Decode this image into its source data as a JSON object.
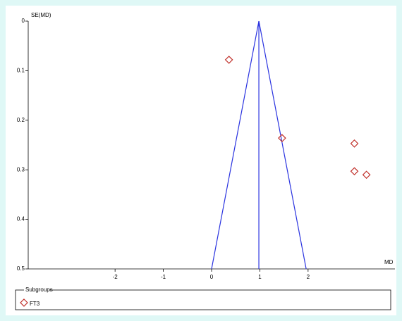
{
  "chart_data": {
    "type": "funnel",
    "xlabel": "MD",
    "ylabel": "SE(MD)",
    "xlim": [
      -3.8,
      3.8
    ],
    "xticks": [
      -2,
      -1,
      0,
      1,
      2
    ],
    "ylim": [
      0,
      0.5
    ],
    "yticks": [
      0,
      0.1,
      0.2,
      0.3,
      0.4,
      0.5
    ],
    "y_inverted": true,
    "funnel_color": "#2a33e0",
    "funnel": {
      "apex": [
        0.98,
        0
      ],
      "left_base": [
        0,
        0.5
      ],
      "right_base": [
        1.96,
        0.5
      ]
    },
    "legend_title": "Subgroups",
    "series": [
      {
        "name": "FT3",
        "color": "#c0302a",
        "x": [
          0.36,
          1.46,
          2.96,
          2.96,
          3.21
        ],
        "values": [
          0.078,
          0.236,
          0.247,
          0.303,
          0.31
        ]
      }
    ]
  }
}
